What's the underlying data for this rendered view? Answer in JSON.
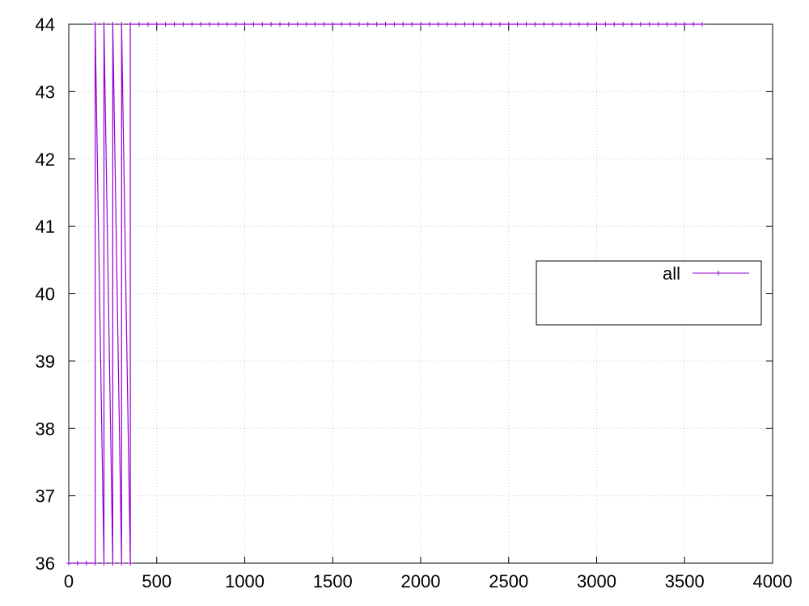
{
  "chart_data": {
    "type": "line",
    "title": "",
    "xlabel": "",
    "ylabel": "",
    "xlim": [
      0,
      4000
    ],
    "ylim": [
      36,
      44
    ],
    "x_ticks": [
      0,
      500,
      1000,
      1500,
      2000,
      2500,
      3000,
      3500,
      4000
    ],
    "x_tick_labels": [
      "0",
      "500",
      "1000",
      "1500",
      "2000",
      "2500",
      "3000",
      "3500",
      "4000"
    ],
    "y_ticks": [
      36,
      37,
      38,
      39,
      40,
      41,
      42,
      43,
      44
    ],
    "y_tick_labels": [
      "36",
      "37",
      "38",
      "39",
      "40",
      "41",
      "42",
      "43",
      "44"
    ],
    "grid": true,
    "legend_position": "right",
    "series": [
      {
        "name": "all",
        "color": "#9400d3",
        "marker": "plus",
        "x": [
          0,
          50,
          100,
          150,
          150,
          200,
          200,
          250,
          250,
          300,
          300,
          350,
          350,
          400,
          450,
          500,
          550,
          600,
          650,
          700,
          750,
          800,
          850,
          900,
          950,
          1000,
          1050,
          1100,
          1150,
          1200,
          1250,
          1300,
          1350,
          1400,
          1450,
          1500,
          1550,
          1600,
          1650,
          1700,
          1750,
          1800,
          1850,
          1900,
          1950,
          2000,
          2050,
          2100,
          2150,
          2200,
          2250,
          2300,
          2350,
          2400,
          2450,
          2500,
          2550,
          2600,
          2650,
          2700,
          2750,
          2800,
          2850,
          2900,
          2950,
          3000,
          3050,
          3100,
          3150,
          3200,
          3250,
          3300,
          3350,
          3400,
          3450,
          3500,
          3550,
          3600
        ],
        "y": [
          36,
          36,
          36,
          36,
          44,
          36,
          44,
          36,
          44,
          36,
          44,
          36,
          44,
          44,
          44,
          44,
          44,
          44,
          44,
          44,
          44,
          44,
          44,
          44,
          44,
          44,
          44,
          44,
          44,
          44,
          44,
          44,
          44,
          44,
          44,
          44,
          44,
          44,
          44,
          44,
          44,
          44,
          44,
          44,
          44,
          44,
          44,
          44,
          44,
          44,
          44,
          44,
          44,
          44,
          44,
          44,
          44,
          44,
          44,
          44,
          44,
          44,
          44,
          44,
          44,
          44,
          44,
          44,
          44,
          44,
          44,
          44,
          44,
          44,
          44,
          44,
          44,
          44
        ]
      }
    ]
  }
}
